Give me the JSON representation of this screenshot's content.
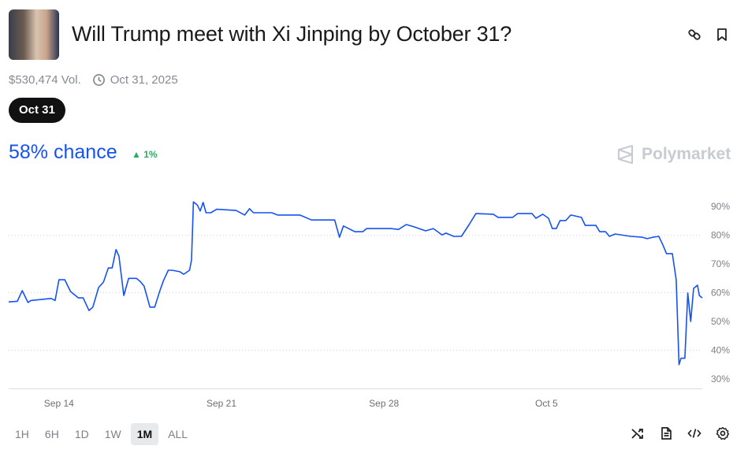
{
  "header": {
    "title": "Will Trump meet with Xi Jinping by October 31?",
    "volume": "$530,474 Vol.",
    "end_date": "Oct 31, 2025",
    "icons": [
      "link-icon",
      "bookmark-icon"
    ]
  },
  "date_pill": "Oct 31",
  "summary": {
    "chance": "58% chance",
    "change": "1%",
    "change_color": "#27ae60",
    "accent": "#1652f0"
  },
  "brand": "Polymarket",
  "ranges": [
    {
      "label": "1H"
    },
    {
      "label": "6H"
    },
    {
      "label": "1D"
    },
    {
      "label": "1W"
    },
    {
      "label": "1M",
      "active": true
    },
    {
      "label": "ALL"
    }
  ],
  "toolbar_icons": [
    "shuffle-icon",
    "document-icon",
    "code-icon",
    "settings-icon"
  ],
  "chart_data": {
    "type": "line",
    "ylim": [
      30,
      90
    ],
    "yticks": [
      "90%",
      "80%",
      "70%",
      "60%",
      "50%",
      "40%",
      "30%"
    ],
    "ytick_values": [
      90,
      80,
      70,
      60,
      50,
      40,
      30
    ],
    "xticks": [
      {
        "label": "Sep 14",
        "date": "2025-09-14T00:00"
      },
      {
        "label": "Sep 21",
        "date": "2025-09-21T00:00"
      },
      {
        "label": "Sep 28",
        "date": "2025-09-28T00:00"
      },
      {
        "label": "Oct 5",
        "date": "2025-10-05T00:00"
      }
    ],
    "grid": "dotted horizontal",
    "line_color": "#1652f0",
    "points": [
      [
        "2025-09-11T20:00",
        56.8
      ],
      [
        "2025-09-12T05:00",
        57
      ],
      [
        "2025-09-12T10:00",
        60.7
      ],
      [
        "2025-09-12T16:00",
        56.6
      ],
      [
        "2025-09-12T19:00",
        57.3
      ],
      [
        "2025-09-13T16:00",
        58
      ],
      [
        "2025-09-13T20:00",
        57.3
      ],
      [
        "2025-09-14T00:00",
        64.5
      ],
      [
        "2025-09-14T06:00",
        64.5
      ],
      [
        "2025-09-14T12:00",
        60.4
      ],
      [
        "2025-09-14T20:00",
        58.2
      ],
      [
        "2025-09-15T01:00",
        58.2
      ],
      [
        "2025-09-15T07:00",
        53.8
      ],
      [
        "2025-09-15T11:00",
        55
      ],
      [
        "2025-09-15T17:00",
        61.8
      ],
      [
        "2025-09-15T22:00",
        63.7
      ],
      [
        "2025-09-16T03:00",
        68.6
      ],
      [
        "2025-09-16T07:00",
        68.6
      ],
      [
        "2025-09-16T11:00",
        75
      ],
      [
        "2025-09-16T14:00",
        72.7
      ],
      [
        "2025-09-16T19:00",
        59
      ],
      [
        "2025-09-17T00:00",
        65
      ],
      [
        "2025-09-17T08:00",
        65
      ],
      [
        "2025-09-17T12:00",
        63.9
      ],
      [
        "2025-09-17T16:00",
        62.3
      ],
      [
        "2025-09-17T22:00",
        55
      ],
      [
        "2025-09-18T03:00",
        55
      ],
      [
        "2025-09-18T08:00",
        60.4
      ],
      [
        "2025-09-18T12:00",
        64.2
      ],
      [
        "2025-09-18T17:00",
        67.8
      ],
      [
        "2025-09-18T21:00",
        67.8
      ],
      [
        "2025-09-19T05:00",
        67.3
      ],
      [
        "2025-09-19T09:00",
        66.4
      ],
      [
        "2025-09-19T15:00",
        67.8
      ],
      [
        "2025-09-19T17:00",
        71.4
      ],
      [
        "2025-09-19T19:00",
        91.6
      ],
      [
        "2025-09-19T23:00",
        90.5
      ],
      [
        "2025-09-20T02:00",
        88.4
      ],
      [
        "2025-09-20T05:00",
        91.4
      ],
      [
        "2025-09-20T08:00",
        87.8
      ],
      [
        "2025-09-20T13:00",
        87.8
      ],
      [
        "2025-09-20T19:00",
        89
      ],
      [
        "2025-09-21T15:00",
        88.6
      ],
      [
        "2025-09-22T00:00",
        87
      ],
      [
        "2025-09-22T05:00",
        89.2
      ],
      [
        "2025-09-22T09:00",
        87.8
      ],
      [
        "2025-09-23T04:00",
        87.8
      ],
      [
        "2025-09-23T10:00",
        87
      ],
      [
        "2025-09-24T09:00",
        87
      ],
      [
        "2025-09-24T21:00",
        85.3
      ],
      [
        "2025-09-25T21:00",
        85.3
      ],
      [
        "2025-09-26T02:00",
        79.3
      ],
      [
        "2025-09-26T06:00",
        83.2
      ],
      [
        "2025-09-26T18:00",
        81.2
      ],
      [
        "2025-09-27T02:00",
        81.2
      ],
      [
        "2025-09-27T06:00",
        82.3
      ],
      [
        "2025-09-28T07:00",
        82.3
      ],
      [
        "2025-09-28T15:00",
        82
      ],
      [
        "2025-09-28T23:00",
        83.7
      ],
      [
        "2025-09-29T07:00",
        82.9
      ],
      [
        "2025-09-29T19:00",
        81.5
      ],
      [
        "2025-09-30T03:00",
        82.3
      ],
      [
        "2025-09-30T12:00",
        80.1
      ],
      [
        "2025-09-30T16:00",
        80.7
      ],
      [
        "2025-10-01T00:00",
        79.6
      ],
      [
        "2025-10-01T08:00",
        79.6
      ],
      [
        "2025-10-01T16:00",
        83.7
      ],
      [
        "2025-10-01T23:00",
        87.5
      ],
      [
        "2025-10-02T17:00",
        87.3
      ],
      [
        "2025-10-02T22:00",
        86.2
      ],
      [
        "2025-10-03T13:00",
        86.2
      ],
      [
        "2025-10-03T18:00",
        87.5
      ],
      [
        "2025-10-04T09:00",
        87.5
      ],
      [
        "2025-10-04T13:00",
        85.9
      ],
      [
        "2025-10-04T20:00",
        87.3
      ],
      [
        "2025-10-05T02:00",
        85.9
      ],
      [
        "2025-10-05T06:00",
        82.3
      ],
      [
        "2025-10-05T10:00",
        82.3
      ],
      [
        "2025-10-05T14:00",
        85.1
      ],
      [
        "2025-10-05T20:00",
        85.1
      ],
      [
        "2025-10-06T01:00",
        87
      ],
      [
        "2025-10-06T12:00",
        86.2
      ],
      [
        "2025-10-06T16:00",
        83.4
      ],
      [
        "2025-10-07T03:00",
        83.4
      ],
      [
        "2025-10-07T07:00",
        81.2
      ],
      [
        "2025-10-07T13:00",
        81.2
      ],
      [
        "2025-10-07T17:00",
        79.6
      ],
      [
        "2025-10-07T23:00",
        80.4
      ],
      [
        "2025-10-08T15:00",
        79.6
      ],
      [
        "2025-10-09T03:00",
        79.3
      ],
      [
        "2025-10-09T08:00",
        78.8
      ],
      [
        "2025-10-09T14:00",
        79.3
      ],
      [
        "2025-10-09T20:00",
        79.6
      ],
      [
        "2025-10-10T00:00",
        76.8
      ],
      [
        "2025-10-10T04:00",
        73.6
      ],
      [
        "2025-10-10T10:00",
        73.6
      ],
      [
        "2025-10-10T14:00",
        64.5
      ],
      [
        "2025-10-10T17:00",
        35
      ],
      [
        "2025-10-10T19:00",
        37.2
      ],
      [
        "2025-10-10T23:00",
        37.2
      ],
      [
        "2025-10-11T02:00",
        59.9
      ],
      [
        "2025-10-11T05:00",
        50
      ],
      [
        "2025-10-11T08:00",
        61.5
      ],
      [
        "2025-10-11T12:00",
        62.6
      ],
      [
        "2025-10-11T14:00",
        59
      ],
      [
        "2025-10-11T17:00",
        58.2
      ]
    ]
  }
}
